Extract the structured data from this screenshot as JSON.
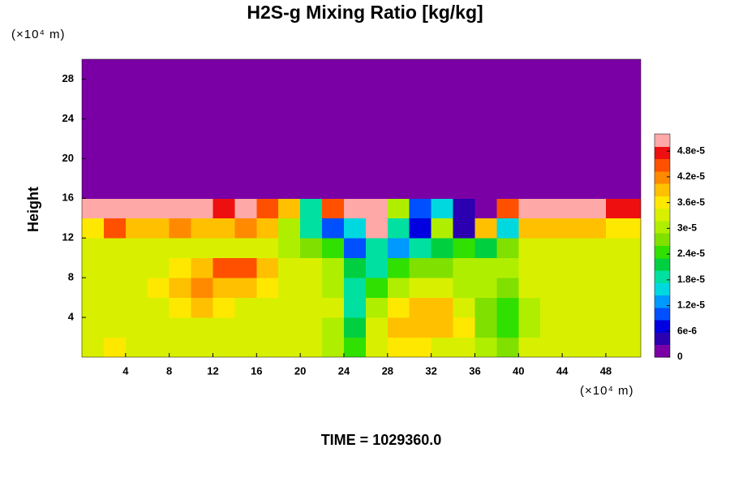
{
  "chart_data": {
    "type": "heatmap",
    "title": "H2S-g Mixing Ratio [kg/kg]",
    "y_label": "Height",
    "y_unit": "(×10⁴ m)",
    "x_unit": "(×10⁴ m)",
    "footer": "TIME = 1029360.0",
    "xlim": [
      0,
      51.2
    ],
    "ylim": [
      0,
      30
    ],
    "xticks": [
      4,
      8,
      12,
      16,
      20,
      24,
      28,
      32,
      36,
      40,
      44,
      48
    ],
    "yticks": [
      4,
      8,
      12,
      16,
      20,
      24,
      28
    ],
    "x": [
      1,
      3,
      5,
      7,
      9,
      11,
      13,
      15,
      17,
      19,
      21,
      23,
      25,
      27,
      29,
      31,
      33,
      35,
      37,
      39,
      41,
      43,
      45,
      47,
      49,
      51
    ],
    "y": [
      1,
      3,
      5,
      7,
      9,
      11,
      13,
      15,
      17,
      19,
      21,
      23,
      25,
      27,
      29
    ],
    "z": [
      [
        3.4e-05,
        3.6e-05,
        3.3e-05,
        3.3e-05,
        3.3e-05,
        3.3e-05,
        3.3e-05,
        3.2e-05,
        3.2e-05,
        3.3e-05,
        3.2e-05,
        3e-05,
        2.4e-05,
        3.3e-05,
        3.6e-05,
        3.6e-05,
        3.4e-05,
        3.3e-05,
        3e-05,
        2.6e-05,
        3.2e-05,
        3.3e-05,
        3.3e-05,
        3.3e-05,
        3.3e-05,
        3.3e-05
      ],
      [
        3.2e-05,
        3.4e-05,
        3.3e-05,
        3.3e-05,
        3.3e-05,
        3.3e-05,
        3.3e-05,
        3.3e-05,
        3.3e-05,
        3.2e-05,
        3.3e-05,
        3e-05,
        2.2e-05,
        3.3e-05,
        3.8e-05,
        4e-05,
        3.8e-05,
        3.6e-05,
        2.6e-05,
        2.4e-05,
        3e-05,
        3.3e-05,
        3.3e-05,
        3.3e-05,
        3.3e-05,
        3.3e-05
      ],
      [
        3.2e-05,
        3.3e-05,
        3.4e-05,
        3.4e-05,
        3.6e-05,
        4e-05,
        3.6e-05,
        3.4e-05,
        3.3e-05,
        3.2e-05,
        3.3e-05,
        3.2e-05,
        2e-05,
        3e-05,
        3.6e-05,
        3.8e-05,
        3.8e-05,
        3.4e-05,
        2.8e-05,
        2.4e-05,
        3e-05,
        3.3e-05,
        3.3e-05,
        3.3e-05,
        3.3e-05,
        3.3e-05
      ],
      [
        3.3e-05,
        3.3e-05,
        3.4e-05,
        3.6e-05,
        3.8e-05,
        4.2e-05,
        4e-05,
        3.8e-05,
        3.6e-05,
        3.3e-05,
        3.2e-05,
        3e-05,
        2e-05,
        2.4e-05,
        3e-05,
        3.4e-05,
        3.2e-05,
        3e-05,
        3e-05,
        2.6e-05,
        3.2e-05,
        3.3e-05,
        3.3e-05,
        3.4e-05,
        3.3e-05,
        3.3e-05
      ],
      [
        3.3e-05,
        3.3e-05,
        3.3e-05,
        3.4e-05,
        3.6e-05,
        4e-05,
        4.4e-05,
        4.6e-05,
        4e-05,
        3.4e-05,
        3.3e-05,
        3e-05,
        2.2e-05,
        2e-05,
        2.4e-05,
        2.6e-05,
        2.8e-05,
        3e-05,
        3e-05,
        3e-05,
        3.2e-05,
        3.3e-05,
        3.3e-05,
        3.3e-05,
        3.3e-05,
        3.3e-05
      ],
      [
        3.3e-05,
        3.3e-05,
        3.3e-05,
        3.4e-05,
        3.3e-05,
        3.3e-05,
        3.3e-05,
        3.4e-05,
        3.2e-05,
        3e-05,
        2.8e-05,
        2.5e-05,
        1e-05,
        1.8e-05,
        1.4e-05,
        1.8e-05,
        2.2e-05,
        2.4e-05,
        2.2e-05,
        2.8e-05,
        3.3e-05,
        3.3e-05,
        3.3e-05,
        3.3e-05,
        3.3e-05,
        3.3e-05
      ],
      [
        3.6e-05,
        4.5e-05,
        4e-05,
        3.8e-05,
        4.2e-05,
        4e-05,
        3.8e-05,
        4.2e-05,
        4e-05,
        3e-05,
        2e-05,
        1e-05,
        1.5e-05,
        5.2e-05,
        2e-05,
        8e-06,
        3e-05,
        5e-06,
        4e-05,
        1.5e-05,
        3.8e-05,
        4e-05,
        4e-05,
        3.8e-05,
        3.6e-05,
        3.6e-05
      ],
      [
        5.2e-05,
        5.2e-05,
        5e-05,
        5.2e-05,
        5.2e-05,
        5e-05,
        4.8e-05,
        5e-05,
        4.5e-05,
        4e-05,
        2e-05,
        4.5e-05,
        5.2e-05,
        5.2e-05,
        3e-05,
        1e-05,
        1.5e-05,
        5e-06,
        0,
        4.5e-05,
        5.2e-05,
        5.2e-05,
        5e-05,
        5e-05,
        4.8e-05,
        4.8e-05
      ],
      [
        0,
        0,
        0,
        0,
        0,
        0,
        0,
        0,
        0,
        0,
        0,
        0,
        0,
        0,
        0,
        0,
        0,
        0,
        0,
        0,
        0,
        0,
        0,
        0,
        0,
        0
      ],
      [
        0,
        0,
        0,
        0,
        0,
        0,
        0,
        0,
        0,
        0,
        0,
        0,
        0,
        0,
        0,
        0,
        0,
        0,
        0,
        0,
        0,
        0,
        0,
        0,
        0,
        0
      ],
      [
        0,
        0,
        0,
        0,
        0,
        0,
        0,
        0,
        0,
        0,
        0,
        0,
        0,
        0,
        0,
        0,
        0,
        0,
        0,
        0,
        0,
        0,
        0,
        0,
        0,
        0
      ],
      [
        0,
        0,
        0,
        0,
        0,
        0,
        0,
        0,
        0,
        0,
        0,
        0,
        0,
        0,
        0,
        0,
        0,
        0,
        0,
        0,
        0,
        0,
        0,
        0,
        0,
        0
      ],
      [
        0,
        0,
        0,
        0,
        0,
        0,
        0,
        0,
        0,
        0,
        0,
        0,
        0,
        0,
        0,
        0,
        0,
        0,
        0,
        0,
        0,
        0,
        0,
        0,
        0,
        0
      ],
      [
        0,
        0,
        0,
        0,
        0,
        0,
        0,
        0,
        0,
        0,
        0,
        0,
        0,
        0,
        0,
        0,
        0,
        0,
        0,
        0,
        0,
        0,
        0,
        0,
        0,
        0
      ],
      [
        0,
        0,
        0,
        0,
        0,
        0,
        0,
        0,
        0,
        0,
        0,
        0,
        0,
        0,
        0,
        0,
        0,
        0,
        0,
        0,
        0,
        0,
        0,
        0,
        0,
        0
      ]
    ],
    "zlim": [
      0,
      5.2e-05
    ],
    "zticks": [
      0,
      {
        "value": 6e-06,
        "label": "6e-6"
      },
      {
        "value": 1.2e-05,
        "label": "1.2e-5"
      },
      {
        "value": 1.8e-05,
        "label": "1.8e-5"
      },
      {
        "value": 2.4e-05,
        "label": "2.4e-5"
      },
      {
        "value": 3e-05,
        "label": "3e-5"
      },
      {
        "value": 3.6e-05,
        "label": "3.6e-5"
      },
      {
        "value": 4.2e-05,
        "label": "4.2e-5"
      },
      {
        "value": 4.8e-05,
        "label": "4.8e-5"
      }
    ],
    "colors": [
      "#7a00a6",
      "#2a00b0",
      "#0000e0",
      "#0050ff",
      "#0099ff",
      "#00d8e0",
      "#00e0a0",
      "#00d040",
      "#30e000",
      "#80e000",
      "#b0ee00",
      "#d8f000",
      "#ffe800",
      "#ffc000",
      "#ff8a00",
      "#ff5000",
      "#ee1010",
      "#ffa8a8"
    ]
  }
}
